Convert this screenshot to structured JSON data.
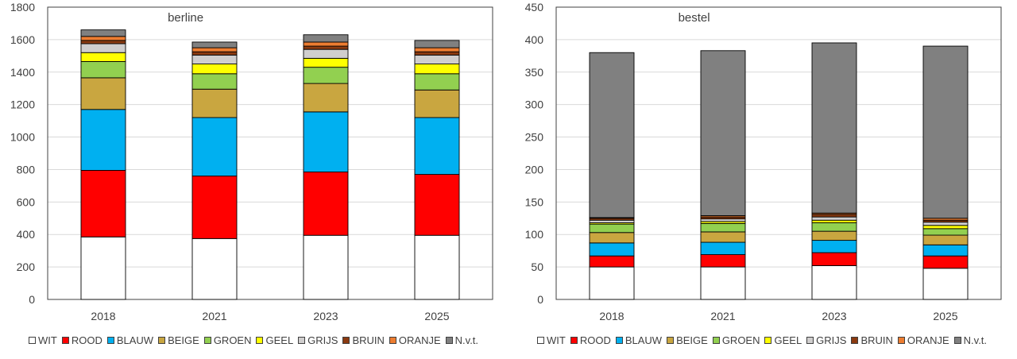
{
  "series_names": [
    "WIT",
    "ROOD",
    "BLAUW",
    "BEIGE",
    "GROEN",
    "GEEL",
    "GRIJS",
    "BRUIN",
    "ORANJE",
    "N.v.t."
  ],
  "series_colors": [
    "#ffffff",
    "#ff0000",
    "#00b0f0",
    "#c9a640",
    "#92d050",
    "#ffff00",
    "#d0cece",
    "#8b3a10",
    "#ed7d31",
    "#808080"
  ],
  "chart_data": [
    {
      "type": "bar",
      "stacked": true,
      "title": "berline",
      "categories": [
        "2018",
        "2021",
        "2023",
        "2025"
      ],
      "ylim": [
        0,
        1800
      ],
      "yticks": [
        "0",
        "200",
        "400",
        "600",
        "800",
        "1000",
        "1200",
        "1400",
        "1600",
        "1800"
      ],
      "grid": true,
      "legend_position": "bottom",
      "series": [
        {
          "name": "WIT",
          "values": [
            385,
            375,
            395,
            395
          ]
        },
        {
          "name": "ROOD",
          "values": [
            410,
            385,
            390,
            375
          ]
        },
        {
          "name": "BLAUW",
          "values": [
            375,
            360,
            370,
            350
          ]
        },
        {
          "name": "BEIGE",
          "values": [
            195,
            175,
            175,
            170
          ]
        },
        {
          "name": "GROEN",
          "values": [
            100,
            95,
            100,
            100
          ]
        },
        {
          "name": "GEEL",
          "values": [
            55,
            60,
            55,
            60
          ]
        },
        {
          "name": "GRIJS",
          "values": [
            55,
            55,
            55,
            55
          ]
        },
        {
          "name": "BRUIN",
          "values": [
            20,
            20,
            20,
            20
          ]
        },
        {
          "name": "ORANJE",
          "values": [
            25,
            25,
            25,
            25
          ]
        },
        {
          "name": "N.v.t.",
          "values": [
            40,
            35,
            45,
            45
          ]
        }
      ]
    },
    {
      "type": "bar",
      "stacked": true,
      "title": "bestel",
      "categories": [
        "2018",
        "2021",
        "2023",
        "2025"
      ],
      "ylim": [
        0,
        450
      ],
      "yticks": [
        "0",
        "50",
        "100",
        "150",
        "200",
        "250",
        "300",
        "350",
        "400",
        "450"
      ],
      "grid": true,
      "legend_position": "bottom",
      "series": [
        {
          "name": "WIT",
          "values": [
            50,
            50,
            52,
            48
          ]
        },
        {
          "name": "ROOD",
          "values": [
            17,
            19,
            20,
            19
          ]
        },
        {
          "name": "BLAUW",
          "values": [
            20,
            19,
            19,
            17
          ]
        },
        {
          "name": "BEIGE",
          "values": [
            16,
            16,
            14,
            15
          ]
        },
        {
          "name": "GROEN",
          "values": [
            13,
            13,
            13,
            10
          ]
        },
        {
          "name": "GEEL",
          "values": [
            2,
            3,
            4,
            5
          ]
        },
        {
          "name": "GRIJS",
          "values": [
            4,
            4,
            5,
            5
          ]
        },
        {
          "name": "BRUIN",
          "values": [
            3,
            3,
            4,
            3
          ]
        },
        {
          "name": "ORANJE",
          "values": [
            1,
            2,
            2,
            3
          ]
        },
        {
          "name": "N.v.t.",
          "values": [
            254,
            254,
            262,
            265
          ]
        }
      ]
    }
  ]
}
